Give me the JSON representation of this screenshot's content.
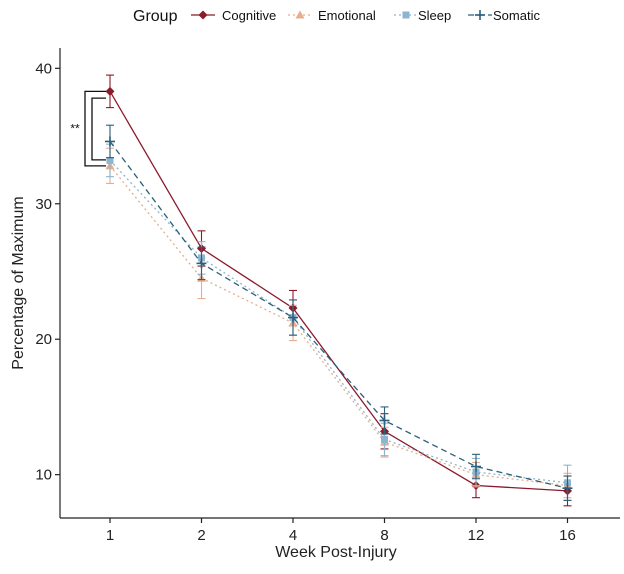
{
  "chart_data": {
    "type": "line",
    "title": "",
    "xlabel": "Week Post-Injury",
    "ylabel": "Percentage of Maximum",
    "categories": [
      "1",
      "2",
      "4",
      "8",
      "12",
      "16"
    ],
    "ylim": [
      6.8,
      41.5
    ],
    "yticks": [
      10,
      20,
      30,
      40
    ],
    "grid": false,
    "legend": {
      "title": "Group",
      "position": "top"
    },
    "series": [
      {
        "name": "Cognitive",
        "color": "#8B1A2B",
        "marker": "diamond",
        "dash": "solid",
        "values": [
          38.3,
          26.7,
          22.3,
          13.2,
          9.2,
          8.8
        ],
        "error": [
          1.2,
          1.3,
          1.3,
          1.3,
          0.9,
          1.1
        ]
      },
      {
        "name": "Emotional",
        "color": "#E6AE8E",
        "marker": "triangle",
        "dash": "dotted",
        "values": [
          32.8,
          24.5,
          21.2,
          12.4,
          10.0,
          9.2
        ],
        "error": [
          1.3,
          1.5,
          1.3,
          1.1,
          0.9,
          0.9
        ]
      },
      {
        "name": "Sleep",
        "color": "#8DB5CF",
        "marker": "square",
        "dash": "dotted",
        "values": [
          33.2,
          26.0,
          21.6,
          12.6,
          10.2,
          9.4
        ],
        "error": [
          1.2,
          1.2,
          1.3,
          1.2,
          1.0,
          1.3
        ]
      },
      {
        "name": "Somatic",
        "color": "#2C5F7A",
        "marker": "plus",
        "dash": "dashed",
        "values": [
          34.6,
          25.6,
          21.6,
          14.0,
          10.6,
          9.0
        ],
        "error": [
          1.2,
          1.2,
          1.3,
          1.0,
          0.9,
          0.9
        ]
      }
    ],
    "annotations": [
      {
        "text": "**",
        "category": "1",
        "from": 38.3,
        "to": 32.8
      }
    ]
  }
}
